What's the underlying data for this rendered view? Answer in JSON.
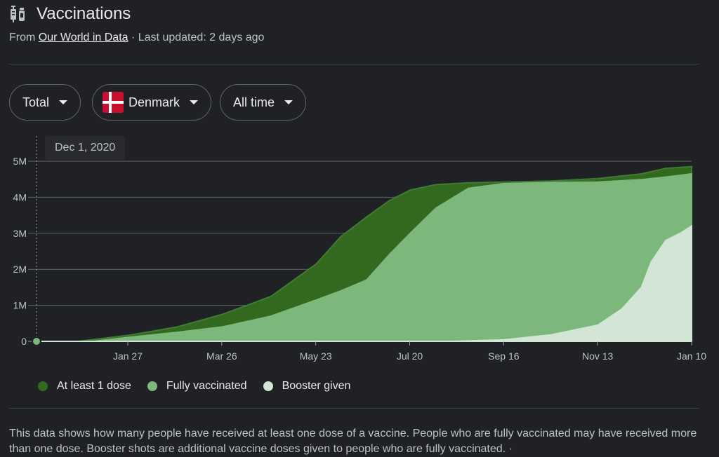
{
  "header": {
    "title": "Vaccinations",
    "source_prefix": "From",
    "source_link": "Our World in Data",
    "source_suffix": "· Last updated: 2 days ago"
  },
  "filters": {
    "metric": "Total",
    "country": "Denmark",
    "range": "All time"
  },
  "tooltip": "Dec 1, 2020",
  "colors": {
    "at_least_1_dose": "#33691e",
    "fully_vaccinated": "#7cb87c",
    "booster_given": "#d3e6d6",
    "grid": "#5f6368"
  },
  "chart_data": {
    "type": "area",
    "x_start": "2020-12-01",
    "x_end": "2022-01-10",
    "xticks": [
      "Jan 27",
      "Mar 26",
      "May 23",
      "Jul 20",
      "Sep 16",
      "Nov 13",
      "Jan 10"
    ],
    "ytick_labels": [
      "0",
      "1M",
      "2M",
      "3M",
      "4M",
      "5M"
    ],
    "yticks": [
      0,
      1000000,
      2000000,
      3000000,
      4000000,
      5000000
    ],
    "ylim": [
      0,
      5000000
    ],
    "legend_position": "bottom",
    "grid": true,
    "series": [
      {
        "name": "At least 1 dose",
        "x": [
          "2020-12-01",
          "2020-12-27",
          "2021-01-27",
          "2021-02-26",
          "2021-03-26",
          "2021-04-25",
          "2021-05-23",
          "2021-06-07",
          "2021-06-23",
          "2021-07-07",
          "2021-07-20",
          "2021-08-05",
          "2021-08-25",
          "2021-09-16",
          "2021-10-15",
          "2021-11-13",
          "2021-12-10",
          "2021-12-25",
          "2022-01-10"
        ],
        "values": [
          0,
          0,
          170000,
          400000,
          750000,
          1250000,
          2150000,
          2900000,
          3450000,
          3900000,
          4200000,
          4350000,
          4400000,
          4420000,
          4450000,
          4520000,
          4650000,
          4800000,
          4850000
        ]
      },
      {
        "name": "Fully vaccinated",
        "x": [
          "2020-12-01",
          "2021-01-05",
          "2021-01-27",
          "2021-02-26",
          "2021-03-26",
          "2021-04-25",
          "2021-05-23",
          "2021-06-07",
          "2021-06-23",
          "2021-07-07",
          "2021-07-20",
          "2021-08-05",
          "2021-08-25",
          "2021-09-16",
          "2021-10-15",
          "2021-11-13",
          "2021-12-10",
          "2021-12-25",
          "2022-01-10"
        ],
        "values": [
          0,
          0,
          110000,
          250000,
          400000,
          700000,
          1150000,
          1400000,
          1700000,
          2400000,
          3000000,
          3700000,
          4250000,
          4380000,
          4410000,
          4420000,
          4490000,
          4560000,
          4650000
        ]
      },
      {
        "name": "Booster given",
        "x": [
          "2020-12-01",
          "2021-08-15",
          "2021-09-16",
          "2021-10-15",
          "2021-11-13",
          "2021-11-28",
          "2021-12-10",
          "2021-12-16",
          "2021-12-25",
          "2022-01-03",
          "2022-01-10"
        ],
        "values": [
          0,
          0,
          40000,
          180000,
          450000,
          900000,
          1500000,
          2200000,
          2800000,
          3000000,
          3200000
        ]
      }
    ]
  },
  "footnote": "This data shows how many people have received at least one dose of a vaccine. People who are fully vaccinated may have received more than one dose. Booster shots are additional vaccine doses given to people who are fully vaccinated.  ·"
}
